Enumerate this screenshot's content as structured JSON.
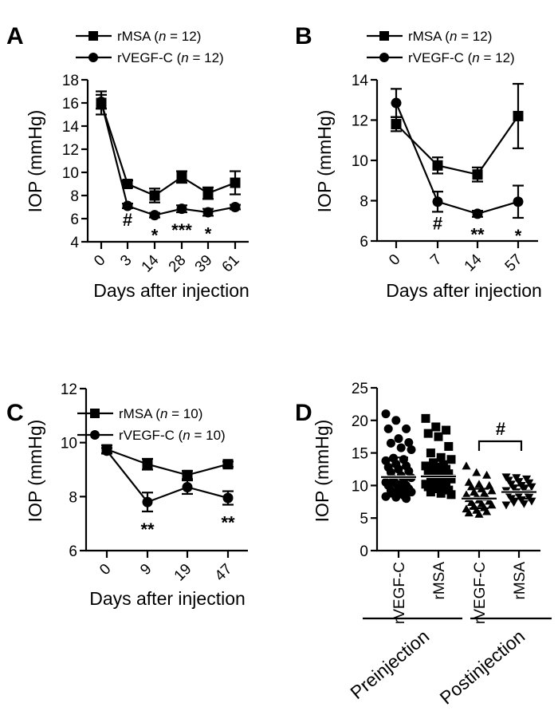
{
  "chart_data": [
    {
      "panel": "A",
      "type": "line",
      "xlabel": "Days after injection",
      "ylabel": "IOP (mmHg)",
      "categories": [
        "0",
        "3",
        "14",
        "28",
        "39",
        "61"
      ],
      "ylim": [
        4,
        18
      ],
      "yticks": [
        4,
        6,
        8,
        10,
        12,
        14,
        16,
        18
      ],
      "series": [
        {
          "name": "rMSA",
          "n": "12",
          "marker": "square",
          "values": [
            16.0,
            9.0,
            8.0,
            9.6,
            8.2,
            9.1
          ],
          "errors": [
            1.0,
            0.3,
            0.6,
            0.5,
            0.5,
            1.0
          ]
        },
        {
          "name": "rVEGF-C",
          "n": "12",
          "marker": "circle",
          "values": [
            16.1,
            7.1,
            6.3,
            6.85,
            6.55,
            7.0
          ],
          "errors": [
            0.6,
            0.2,
            0.2,
            0.3,
            0.3,
            0.2
          ]
        }
      ],
      "annotations": [
        "",
        "#",
        "*",
        "***",
        "*",
        ""
      ]
    },
    {
      "panel": "B",
      "type": "line",
      "xlabel": "Days after injection",
      "ylabel": "IOP (mmHg)",
      "categories": [
        "0",
        "7",
        "14",
        "57"
      ],
      "ylim": [
        6,
        14
      ],
      "yticks": [
        6,
        8,
        10,
        12,
        14
      ],
      "series": [
        {
          "name": "rMSA",
          "n": "12",
          "marker": "square",
          "values": [
            11.8,
            9.75,
            9.3,
            12.2
          ],
          "errors": [
            0.35,
            0.4,
            0.35,
            1.6
          ]
        },
        {
          "name": "rVEGF-C",
          "n": "12",
          "marker": "circle",
          "values": [
            12.85,
            7.95,
            7.35,
            7.95
          ],
          "errors": [
            0.7,
            0.5,
            0.15,
            0.8
          ]
        }
      ],
      "annotations": [
        "",
        "#",
        "**",
        "*"
      ]
    },
    {
      "panel": "C",
      "type": "line",
      "xlabel": "Days after injection",
      "ylabel": "IOP (mmHg)",
      "categories": [
        "0",
        "9",
        "19",
        "47"
      ],
      "ylim": [
        6,
        12
      ],
      "yticks": [
        6,
        8,
        10,
        12
      ],
      "series": [
        {
          "name": "rMSA",
          "n": "10",
          "marker": "square",
          "values": [
            9.75,
            9.2,
            8.8,
            9.2
          ],
          "errors": [
            0.15,
            0.2,
            0.15,
            0.1
          ]
        },
        {
          "name": "rVEGF-C",
          "n": "10",
          "marker": "circle",
          "values": [
            9.7,
            7.8,
            8.35,
            7.95
          ],
          "errors": [
            0.1,
            0.35,
            0.25,
            0.25
          ]
        }
      ],
      "annotations": [
        "",
        "**",
        "",
        "**"
      ]
    },
    {
      "panel": "D",
      "type": "scatter",
      "ylabel": "IOP (mmHg)",
      "ylim": [
        0,
        25
      ],
      "yticks": [
        0,
        5,
        10,
        15,
        20,
        25
      ],
      "categories": [
        "rVEGF-C",
        "rMSA",
        "rVEGF-C",
        "rMSA"
      ],
      "groups": [
        "Preinjection",
        "Postinjection"
      ],
      "bracket_label": "#",
      "series": [
        {
          "marker": "circle",
          "mean": 11.3,
          "sd": 3.0,
          "values": [
            21,
            20,
            18.7,
            18.7,
            17.2,
            16.6,
            16.5,
            15.8,
            15.5,
            14.2,
            14,
            13.8,
            13.3,
            13,
            12.8,
            12.5,
            12.2,
            12,
            11.5,
            11.2,
            11,
            10.8,
            10.5,
            10.3,
            10,
            10,
            9.8,
            9.5,
            9.2,
            9,
            9,
            8.8,
            8.5,
            8.3,
            8.2,
            8
          ]
        },
        {
          "marker": "square",
          "mean": 11.4,
          "sd": 2.0,
          "values": [
            20.3,
            19,
            18.5,
            18,
            17.5,
            16,
            15,
            14.3,
            14,
            13.5,
            13.2,
            13,
            12.8,
            12.5,
            12.2,
            12,
            11.8,
            11.5,
            11.2,
            11,
            10.8,
            10.5,
            10.2,
            10,
            10,
            9.8,
            9.5,
            9.3,
            9,
            8.8,
            8.6
          ]
        },
        {
          "marker": "triangle-up",
          "mean": 8.0,
          "sd": 1.5,
          "values": [
            13,
            12,
            11.6,
            10.5,
            10.2,
            10,
            9.8,
            9.5,
            9.2,
            9,
            8.8,
            8.6,
            8.4,
            8.2,
            8,
            7.8,
            7.6,
            7.4,
            7.2,
            7,
            6.8,
            6.6,
            6.4,
            6.2,
            6,
            5.8,
            5.6
          ]
        },
        {
          "marker": "triangle-down",
          "mean": 9.0,
          "sd": 1.0,
          "values": [
            11.3,
            11.2,
            11,
            10.8,
            10.6,
            10.4,
            10.2,
            10,
            9.8,
            9.6,
            9.4,
            9.2,
            9,
            8.8,
            8.6,
            8.4,
            8.2,
            8,
            7.8,
            7.6,
            7.4,
            7.2,
            7
          ]
        }
      ]
    }
  ]
}
